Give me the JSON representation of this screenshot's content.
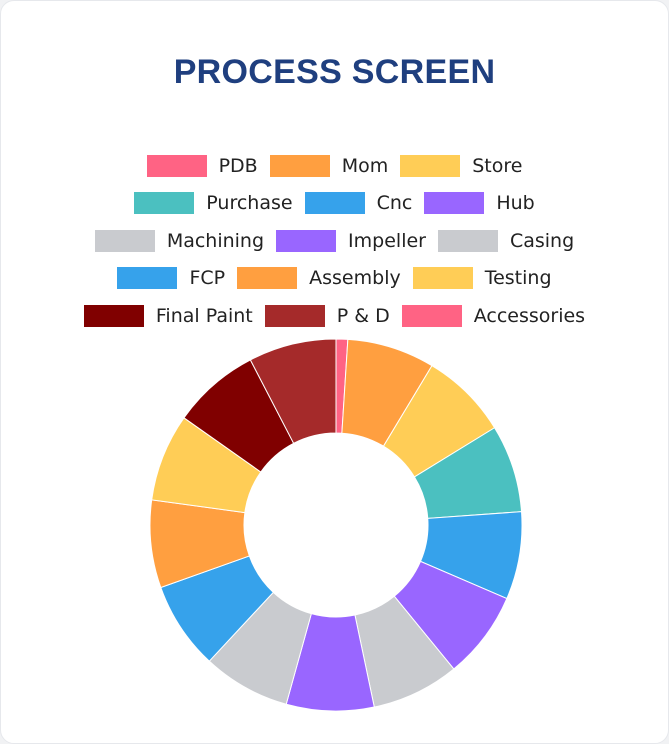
{
  "chart_data": {
    "type": "pie",
    "title": "PROCESS SCREEN",
    "donut": true,
    "legend_position": "top",
    "categories": [
      "PDB",
      "Mom",
      "Store",
      "Purchase",
      "Cnc",
      "Hub",
      "Machining",
      "Impeller",
      "Casing",
      "FCP",
      "Assembly",
      "Testing",
      "Final Paint",
      "P & D",
      "Accessories"
    ],
    "values": [
      1,
      7.5,
      7.5,
      7.5,
      7.5,
      7.5,
      7.5,
      7.5,
      7.5,
      7.5,
      7.5,
      7.5,
      7.5,
      7.5,
      0
    ],
    "colors": [
      "#ff6384",
      "#ff9f40",
      "#ffcd56",
      "#4bc0c0",
      "#36a2eb",
      "#9966ff",
      "#c9cbcf",
      "#9966ff",
      "#c9cbcf",
      "#36a2eb",
      "#ff9f40",
      "#ffcd56",
      "#800000",
      "#a52a2a",
      "#ff6384"
    ]
  }
}
